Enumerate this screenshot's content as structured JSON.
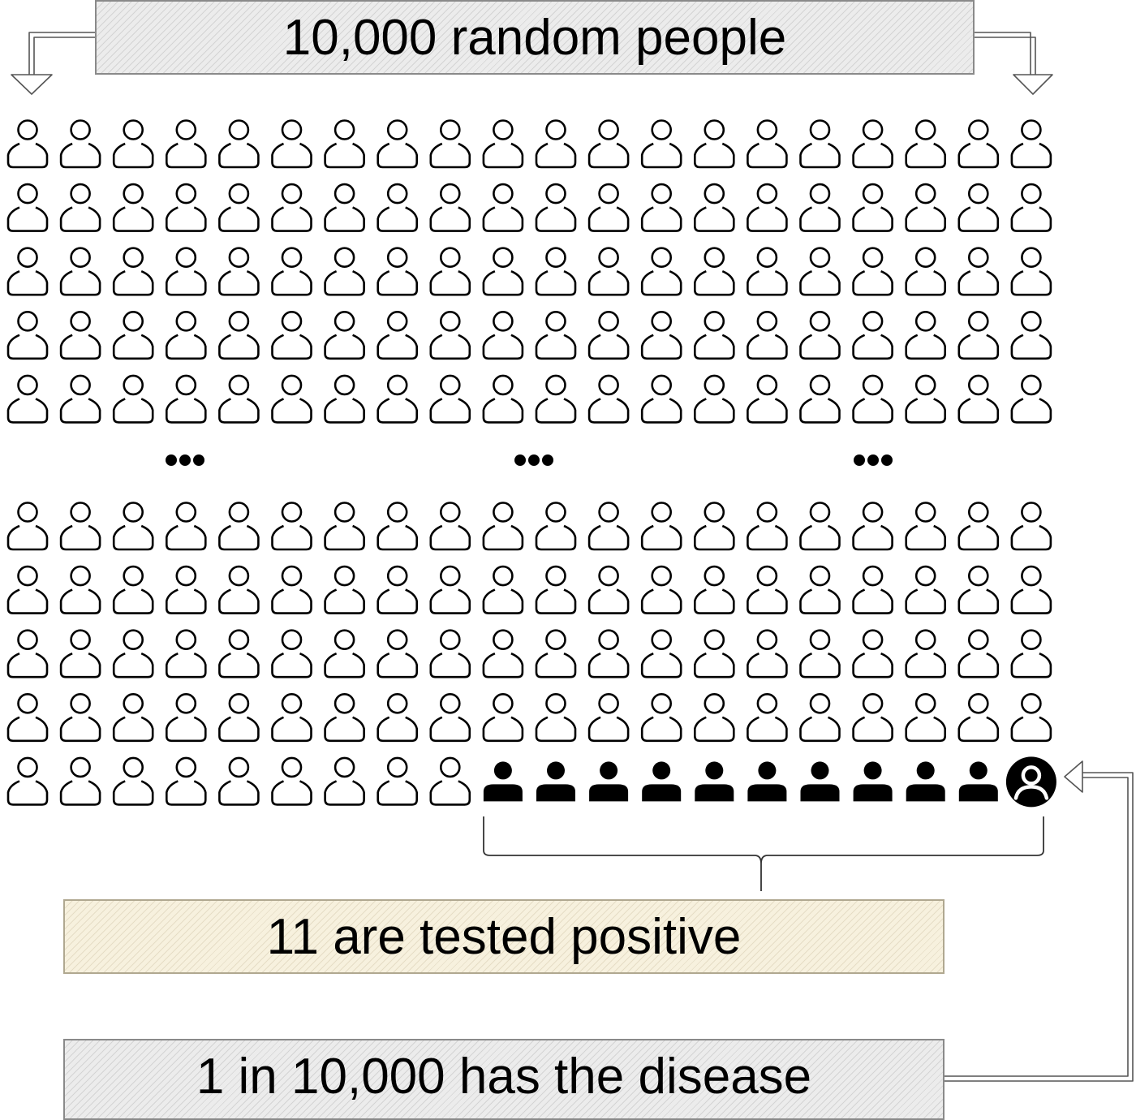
{
  "labels": {
    "population": "10,000 random people",
    "tested_positive": "11 are tested positive",
    "prevalence": "1 in 10,000 has the disease"
  },
  "grid": {
    "columns": 20,
    "top_rows": 5,
    "bottom_rows": 5,
    "ellipsis_count": 3,
    "tested_positive_count": 11,
    "diseased_count": 1
  },
  "icons": {
    "person": "person-outline-icon",
    "false_positive": "person-filled-icon",
    "diseased": "person-circle-icon",
    "ellipsis": "ellipsis-icon"
  },
  "colors": {
    "ink": "#000000",
    "population_box": "#ececec",
    "positive_box": "#f7f1de",
    "prevalence_box": "#ececec"
  }
}
